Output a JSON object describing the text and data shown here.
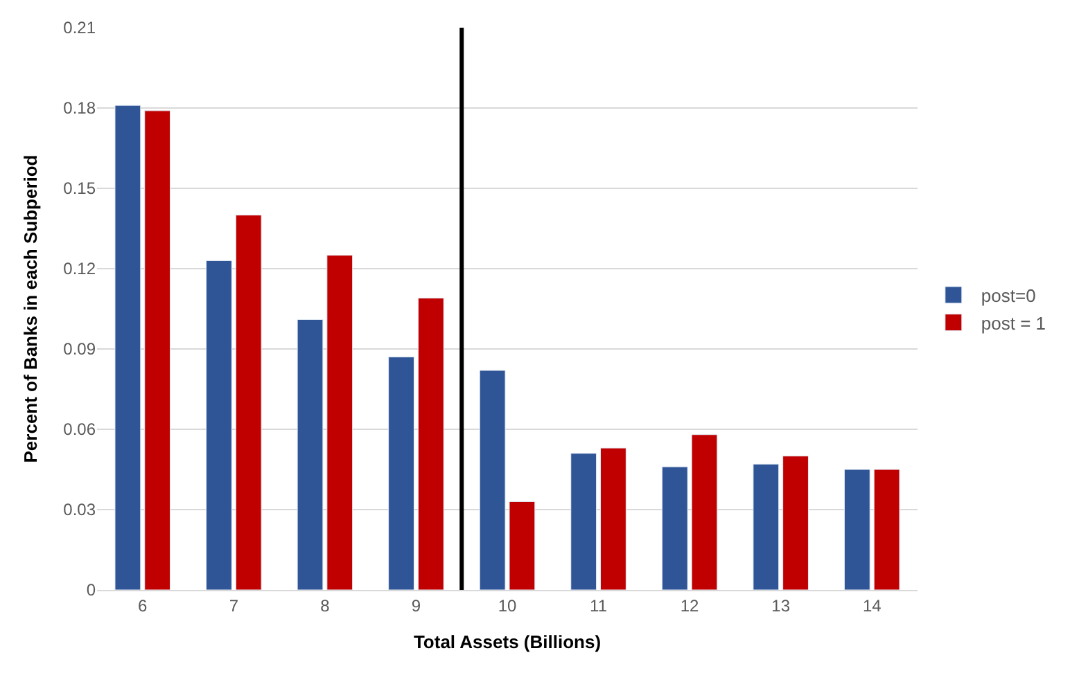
{
  "chart_data": {
    "type": "bar",
    "xlabel": "Total Assets (Billions)",
    "ylabel": "Percent of Banks in each Subperiod",
    "x": [
      6,
      7,
      8,
      9,
      10,
      11,
      12,
      13,
      14
    ],
    "xlim": [
      5.5,
      14.5
    ],
    "xticks": [
      6,
      7,
      8,
      9,
      10,
      11,
      12,
      13,
      14
    ],
    "ylim": [
      0,
      0.21
    ],
    "yticks": [
      {
        "value": 0,
        "label": "0"
      },
      0.03,
      0.06,
      0.09,
      0.12,
      0.15,
      0.18,
      0.21
    ],
    "series": [
      {
        "name": "post=0",
        "color": "#2f5597",
        "values": [
          0.181,
          0.123,
          0.101,
          0.087,
          0.082,
          0.051,
          0.046,
          0.047,
          0.045
        ]
      },
      {
        "name": "post = 1",
        "color": "#c00000",
        "values": [
          0.179,
          0.14,
          0.125,
          0.109,
          0.033,
          0.053,
          0.058,
          0.05,
          0.045
        ]
      }
    ],
    "ref_lines": [
      {
        "axis": "x",
        "value": 9.5,
        "color": "#000000"
      }
    ],
    "grid": "y",
    "legend": "right"
  }
}
